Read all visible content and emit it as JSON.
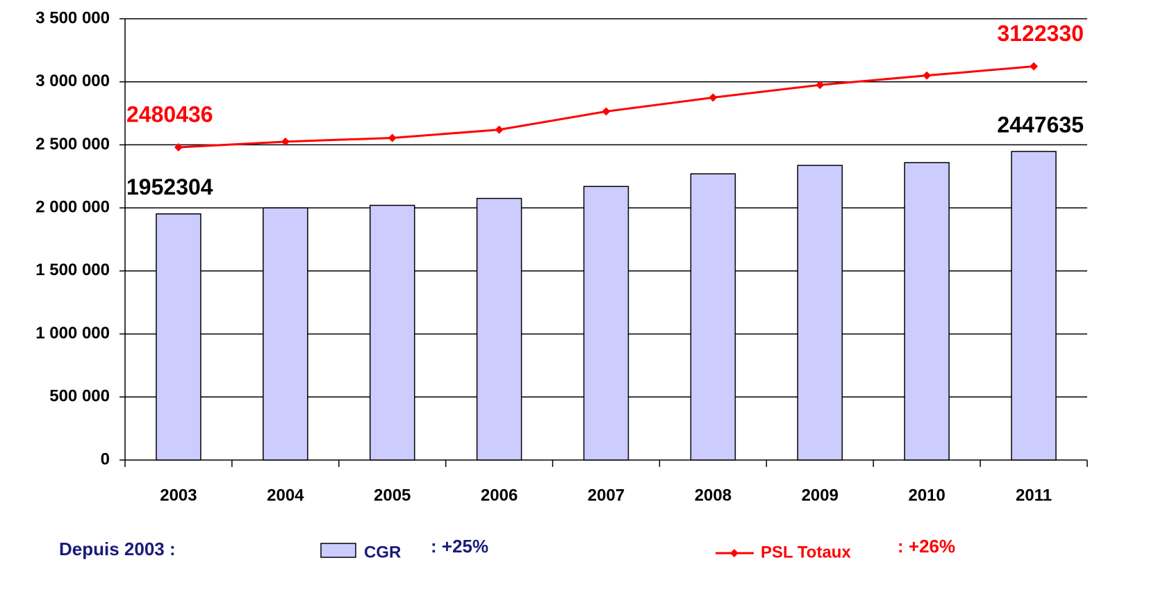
{
  "chart_data": {
    "type": "bar_line",
    "categories": [
      "2003",
      "2004",
      "2005",
      "2006",
      "2007",
      "2008",
      "2009",
      "2010",
      "2011"
    ],
    "series": [
      {
        "name": "CGR",
        "type": "bar",
        "color": "#ccccff",
        "change": ": +25%",
        "values": [
          1952304,
          2000000,
          2020000,
          2075000,
          2170000,
          2270000,
          2337000,
          2359000,
          2447635
        ],
        "value_labels": [
          "1952304",
          null,
          null,
          null,
          null,
          null,
          null,
          null,
          "2447635"
        ]
      },
      {
        "name": "PSL Totaux",
        "type": "line",
        "color": "#ff0000",
        "change": ": +26%",
        "values": [
          2480436,
          2525000,
          2555000,
          2620000,
          2765000,
          2875000,
          2975000,
          3050000,
          3122330
        ],
        "value_labels": [
          "2480436",
          null,
          null,
          null,
          null,
          null,
          null,
          null,
          "3122330"
        ]
      }
    ],
    "note": "Depuis 2003 :",
    "ylim": [
      0,
      3500000
    ],
    "yticks": [
      0,
      {
        "value": 500000,
        "label": "500 000"
      },
      {
        "value": 1000000,
        "label": "1 000 000"
      },
      {
        "value": 1500000,
        "label": "1 500 000"
      },
      {
        "value": 2000000,
        "label": "2 000 000"
      },
      {
        "value": 2500000,
        "label": "2 500 000"
      },
      {
        "value": 3000000,
        "label": "3 000 000"
      },
      {
        "value": 3500000,
        "label": "3 500 000"
      }
    ],
    "grid": true
  }
}
